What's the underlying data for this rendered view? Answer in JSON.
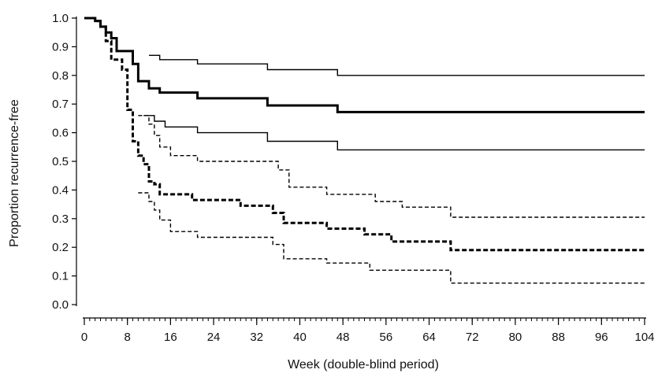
{
  "chart_data": {
    "type": "line",
    "title": "",
    "xlabel": "Week (double-blind period)",
    "ylabel": "Proportion recurrence-free",
    "xlim": [
      0,
      104
    ],
    "ylim": [
      0.0,
      1.0
    ],
    "xticks": [
      0,
      8,
      16,
      24,
      32,
      40,
      48,
      56,
      64,
      72,
      80,
      88,
      96,
      104
    ],
    "xtick_labels": [
      "0",
      "8",
      "16",
      "24",
      "32",
      "40",
      "48",
      "56",
      "64",
      "72",
      "80",
      "88",
      "96",
      "104"
    ],
    "yticks": [
      0.0,
      0.1,
      0.2,
      0.3,
      0.4,
      0.5,
      0.6,
      0.7,
      0.8,
      0.9,
      1.0
    ],
    "ytick_labels": [
      "0.0",
      "0.1",
      "0.2",
      "0.3",
      "0.4",
      "0.5",
      "0.6",
      "0.7",
      "0.8",
      "0.9",
      "1.0"
    ],
    "x_minor_tick_step": 1,
    "grid": false,
    "legend": "none",
    "step_plot": true,
    "series": [
      {
        "style": "solid",
        "weight": "thick",
        "color": "#000000",
        "x": [
          0,
          2,
          3,
          4,
          5,
          6,
          9,
          10,
          12,
          14,
          21,
          34,
          47,
          104
        ],
        "y": [
          1.0,
          0.99,
          0.97,
          0.95,
          0.93,
          0.885,
          0.84,
          0.78,
          0.755,
          0.74,
          0.72,
          0.695,
          0.672,
          0.672
        ]
      },
      {
        "style": "solid",
        "weight": "thin",
        "color": "#000000",
        "x": [
          12,
          14,
          21,
          34,
          47,
          104
        ],
        "y": [
          0.87,
          0.855,
          0.84,
          0.82,
          0.8,
          0.8
        ]
      },
      {
        "style": "solid",
        "weight": "thin",
        "color": "#000000",
        "x": [
          11,
          13,
          15,
          21,
          34,
          47,
          104
        ],
        "y": [
          0.66,
          0.64,
          0.62,
          0.6,
          0.57,
          0.54,
          0.54
        ]
      },
      {
        "style": "dashed",
        "weight": "thick",
        "color": "#000000",
        "x": [
          0,
          2,
          3,
          4,
          5,
          7,
          8,
          9,
          10,
          11,
          12,
          13,
          14,
          20,
          29,
          35,
          37,
          45,
          52,
          57,
          68,
          104
        ],
        "y": [
          1.0,
          0.99,
          0.97,
          0.92,
          0.855,
          0.82,
          0.68,
          0.57,
          0.52,
          0.49,
          0.43,
          0.42,
          0.385,
          0.365,
          0.345,
          0.32,
          0.285,
          0.265,
          0.245,
          0.22,
          0.19,
          0.19
        ]
      },
      {
        "style": "dashed",
        "weight": "thin",
        "color": "#000000",
        "x": [
          10,
          12,
          13,
          14,
          16,
          21,
          36,
          38,
          45,
          54,
          59,
          68,
          104
        ],
        "y": [
          0.66,
          0.63,
          0.59,
          0.55,
          0.52,
          0.5,
          0.47,
          0.41,
          0.385,
          0.36,
          0.34,
          0.305,
          0.305
        ]
      },
      {
        "style": "dashed",
        "weight": "thin",
        "color": "#000000",
        "x": [
          10,
          12,
          13,
          14,
          16,
          21,
          35,
          37,
          45,
          53,
          68,
          104
        ],
        "y": [
          0.39,
          0.36,
          0.33,
          0.295,
          0.255,
          0.235,
          0.21,
          0.16,
          0.145,
          0.12,
          0.075,
          0.075
        ]
      }
    ]
  }
}
